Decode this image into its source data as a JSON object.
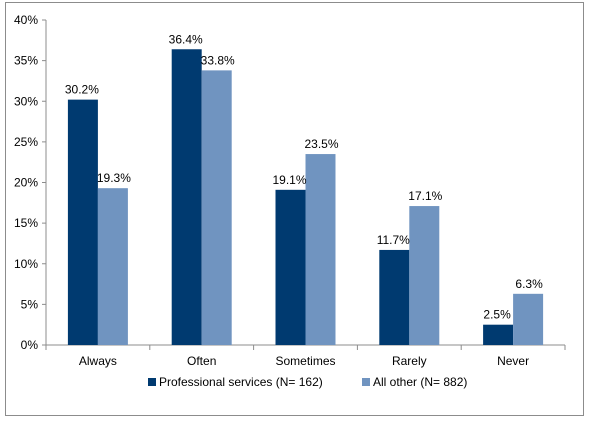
{
  "chart_data": {
    "type": "bar",
    "categories": [
      "Always",
      "Often",
      "Sometimes",
      "Rarely",
      "Never"
    ],
    "series": [
      {
        "name": "Professional services (N= 162)",
        "values": [
          30.2,
          36.4,
          19.1,
          11.7,
          2.5
        ],
        "color": "#003a70"
      },
      {
        "name": "All other (N= 882)",
        "values": [
          19.3,
          33.8,
          23.5,
          17.1,
          6.3
        ],
        "color": "#7094c0"
      }
    ],
    "data_labels": [
      [
        "30.2%",
        "36.4%",
        "19.1%",
        "11.7%",
        "2.5%"
      ],
      [
        "19.3%",
        "33.8%",
        "23.5%",
        "17.1%",
        "6.3%"
      ]
    ],
    "y_ticks": [
      "0%",
      "5%",
      "10%",
      "15%",
      "20%",
      "25%",
      "30%",
      "35%",
      "40%"
    ],
    "ylim": [
      0,
      40
    ],
    "grid": false,
    "legend_position": "bottom"
  }
}
